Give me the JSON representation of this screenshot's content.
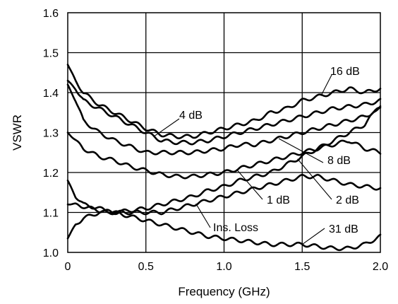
{
  "chart_data": {
    "type": "line",
    "xlabel": "Frequency (GHz)",
    "ylabel": "VSWR",
    "xlim": [
      0,
      2.0
    ],
    "ylim": [
      1.0,
      1.6
    ],
    "xticks": [
      "0",
      "0.5",
      "1.0",
      "1.5",
      "2.0"
    ],
    "yticks": [
      "1.0",
      "1.1",
      "1.2",
      "1.3",
      "1.4",
      "1.5",
      "1.6"
    ],
    "grid": true,
    "series": [
      {
        "name": "16 dB",
        "x": [
          0,
          0.05,
          0.1,
          0.2,
          0.3,
          0.4,
          0.5,
          0.6,
          0.7,
          0.8,
          0.9,
          1.0,
          1.1,
          1.2,
          1.3,
          1.4,
          1.5,
          1.6,
          1.7,
          1.8,
          1.9,
          2.0
        ],
        "y": [
          1.47,
          1.43,
          1.4,
          1.37,
          1.35,
          1.33,
          1.31,
          1.295,
          1.29,
          1.29,
          1.3,
          1.31,
          1.32,
          1.33,
          1.35,
          1.36,
          1.38,
          1.39,
          1.4,
          1.41,
          1.4,
          1.41
        ]
      },
      {
        "name": "4 dB",
        "x": [
          0,
          0.05,
          0.1,
          0.2,
          0.3,
          0.4,
          0.5,
          0.6,
          0.7,
          0.8,
          0.9,
          1.0,
          1.1,
          1.2,
          1.3,
          1.4,
          1.5,
          1.6,
          1.7,
          1.8,
          1.9,
          2.0
        ],
        "y": [
          1.43,
          1.41,
          1.38,
          1.36,
          1.34,
          1.32,
          1.3,
          1.28,
          1.275,
          1.275,
          1.28,
          1.29,
          1.3,
          1.31,
          1.32,
          1.33,
          1.34,
          1.35,
          1.36,
          1.365,
          1.37,
          1.38
        ]
      },
      {
        "name": "8 dB",
        "x": [
          0,
          0.05,
          0.1,
          0.2,
          0.3,
          0.4,
          0.5,
          0.6,
          0.7,
          0.8,
          0.9,
          1.0,
          1.1,
          1.2,
          1.3,
          1.4,
          1.5,
          1.6,
          1.7,
          1.8,
          1.9,
          2.0
        ],
        "y": [
          1.42,
          1.38,
          1.33,
          1.3,
          1.28,
          1.265,
          1.25,
          1.25,
          1.25,
          1.25,
          1.255,
          1.26,
          1.27,
          1.27,
          1.28,
          1.29,
          1.3,
          1.31,
          1.32,
          1.33,
          1.34,
          1.36
        ]
      },
      {
        "name": "1 dB",
        "x": [
          0,
          0.05,
          0.1,
          0.2,
          0.3,
          0.4,
          0.5,
          0.6,
          0.7,
          0.8,
          0.9,
          1.0,
          1.1,
          1.2,
          1.3,
          1.4,
          1.5,
          1.6,
          1.7,
          1.8,
          1.9,
          2.0
        ],
        "y": [
          1.3,
          1.28,
          1.26,
          1.24,
          1.23,
          1.215,
          1.205,
          1.195,
          1.19,
          1.19,
          1.195,
          1.2,
          1.21,
          1.22,
          1.23,
          1.24,
          1.25,
          1.26,
          1.27,
          1.28,
          1.26,
          1.25
        ]
      },
      {
        "name": "2 dB",
        "x": [
          0,
          0.05,
          0.1,
          0.2,
          0.3,
          0.4,
          0.5,
          0.6,
          0.7,
          0.8,
          0.9,
          1.0,
          1.1,
          1.2,
          1.3,
          1.4,
          1.5,
          1.6,
          1.7,
          1.8,
          1.9,
          2.0
        ],
        "y": [
          1.12,
          1.12,
          1.115,
          1.105,
          1.1,
          1.105,
          1.11,
          1.12,
          1.13,
          1.14,
          1.155,
          1.165,
          1.18,
          1.19,
          1.2,
          1.22,
          1.24,
          1.26,
          1.28,
          1.3,
          1.32,
          1.37
        ]
      },
      {
        "name": "Ins. Loss",
        "x": [
          0,
          0.05,
          0.1,
          0.2,
          0.3,
          0.4,
          0.5,
          0.6,
          0.7,
          0.8,
          0.9,
          1.0,
          1.1,
          1.2,
          1.3,
          1.4,
          1.5,
          1.6,
          1.7,
          1.8,
          1.9,
          2.0
        ],
        "y": [
          1.035,
          1.07,
          1.085,
          1.1,
          1.1,
          1.1,
          1.1,
          1.1,
          1.11,
          1.12,
          1.13,
          1.14,
          1.15,
          1.16,
          1.17,
          1.18,
          1.19,
          1.19,
          1.18,
          1.17,
          1.165,
          1.16
        ]
      },
      {
        "name": "31 dB",
        "x": [
          0,
          0.05,
          0.1,
          0.2,
          0.3,
          0.4,
          0.5,
          0.6,
          0.7,
          0.8,
          0.9,
          1.0,
          1.1,
          1.2,
          1.3,
          1.4,
          1.5,
          1.6,
          1.7,
          1.8,
          1.9,
          2.0
        ],
        "y": [
          1.18,
          1.14,
          1.12,
          1.11,
          1.1,
          1.09,
          1.08,
          1.07,
          1.06,
          1.05,
          1.04,
          1.035,
          1.03,
          1.025,
          1.02,
          1.02,
          1.02,
          1.015,
          1.01,
          1.01,
          1.02,
          1.04
        ]
      }
    ],
    "annotations": [
      {
        "text": "16 dB",
        "series": "16 dB",
        "at_x": 1.62
      },
      {
        "text": "4 dB",
        "series": "4 dB",
        "at_x": 0.55
      },
      {
        "text": "8 dB",
        "series": "8 dB",
        "at_x": 1.35
      },
      {
        "text": "1 dB",
        "series": "1 dB",
        "at_x": 1.08
      },
      {
        "text": "2 dB",
        "series": "2 dB",
        "at_x": 1.47
      },
      {
        "text": "Ins. Loss",
        "series": "Ins. Loss",
        "at_x": 0.82
      },
      {
        "text": "31 dB",
        "series": "31 dB",
        "at_x": 1.5
      }
    ]
  }
}
